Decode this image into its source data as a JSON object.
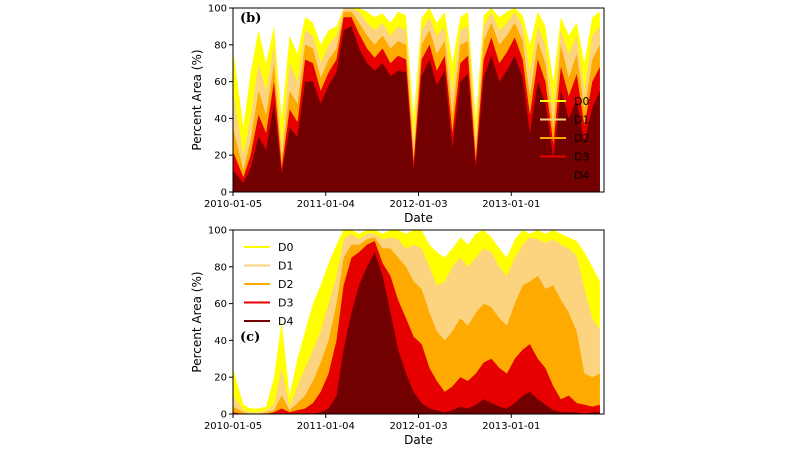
{
  "chart_data": [
    {
      "type": "area",
      "panel_label": "(b)",
      "xlabel": "Date",
      "ylabel": "Percent Area (%)",
      "ylim": [
        0,
        100
      ],
      "yticks": [
        0,
        20,
        40,
        60,
        80,
        100
      ],
      "x_range": [
        "2010-01-05",
        "2013-12-31"
      ],
      "xticks": [
        "2010-01-05",
        "2011-01-04",
        "2012-01-03",
        "2013-01-01"
      ],
      "grid": false,
      "legend_position": "center-right",
      "colors": {
        "D0": "#ffff00",
        "D1": "#fcd37f",
        "D2": "#ffaa00",
        "D3": "#e60000",
        "D4": "#730000"
      },
      "x": [
        "2010-01-05",
        "2010-02-15",
        "2010-03-15",
        "2010-04-15",
        "2010-05-15",
        "2010-06-15",
        "2010-07-15",
        "2010-08-15",
        "2010-09-15",
        "2010-10-15",
        "2010-11-15",
        "2010-12-15",
        "2011-01-15",
        "2011-02-15",
        "2011-03-15",
        "2011-04-15",
        "2011-05-15",
        "2011-06-15",
        "2011-07-15",
        "2011-08-15",
        "2011-09-15",
        "2011-10-15",
        "2011-11-15",
        "2011-12-15",
        "2012-01-15",
        "2012-02-15",
        "2012-03-15",
        "2012-04-15",
        "2012-05-15",
        "2012-06-15",
        "2012-07-15",
        "2012-08-15",
        "2012-09-15",
        "2012-10-15",
        "2012-11-15",
        "2012-12-15",
        "2013-01-15",
        "2013-02-15",
        "2013-03-15",
        "2013-04-15",
        "2013-05-15",
        "2013-06-15",
        "2013-07-15",
        "2013-08-15",
        "2013-09-15",
        "2013-10-15",
        "2013-11-15",
        "2013-12-15"
      ],
      "series": [
        {
          "name": "D0",
          "values": [
            78,
            35,
            65,
            88,
            70,
            90,
            40,
            85,
            75,
            95,
            92,
            80,
            88,
            90,
            100,
            100,
            100,
            98,
            95,
            97,
            92,
            98,
            96,
            40,
            95,
            100,
            92,
            98,
            70,
            95,
            98,
            40,
            96,
            100,
            95,
            98,
            100,
            96,
            80,
            98,
            90,
            60,
            95,
            85,
            92,
            70,
            95,
            98
          ]
        },
        {
          "name": "D1",
          "values": [
            55,
            20,
            40,
            70,
            55,
            80,
            25,
            70,
            60,
            88,
            85,
            70,
            80,
            85,
            100,
            100,
            98,
            92,
            88,
            92,
            85,
            90,
            88,
            28,
            88,
            95,
            85,
            90,
            55,
            88,
            90,
            30,
            90,
            98,
            88,
            92,
            98,
            90,
            65,
            90,
            80,
            45,
            88,
            75,
            85,
            55,
            85,
            90
          ]
        },
        {
          "name": "D2",
          "values": [
            35,
            12,
            28,
            55,
            42,
            70,
            18,
            55,
            48,
            80,
            78,
            62,
            72,
            78,
            98,
            98,
            92,
            85,
            80,
            85,
            78,
            82,
            80,
            20,
            80,
            88,
            75,
            82,
            42,
            80,
            82,
            22,
            82,
            92,
            80,
            85,
            92,
            82,
            52,
            82,
            70,
            35,
            80,
            62,
            75,
            45,
            72,
            80
          ]
        },
        {
          "name": "D3",
          "values": [
            22,
            8,
            20,
            42,
            32,
            60,
            13,
            45,
            38,
            72,
            70,
            55,
            65,
            72,
            95,
            95,
            86,
            78,
            73,
            78,
            70,
            74,
            72,
            16,
            72,
            80,
            66,
            74,
            32,
            70,
            74,
            17,
            72,
            84,
            70,
            76,
            84,
            72,
            42,
            72,
            60,
            26,
            68,
            52,
            64,
            36,
            60,
            68
          ]
        },
        {
          "name": "D4",
          "values": [
            12,
            5,
            13,
            30,
            23,
            48,
            10,
            35,
            30,
            60,
            60,
            48,
            58,
            65,
            88,
            90,
            78,
            70,
            66,
            70,
            63,
            66,
            65,
            12,
            63,
            72,
            58,
            66,
            24,
            60,
            64,
            13,
            62,
            74,
            60,
            66,
            74,
            62,
            32,
            60,
            48,
            18,
            55,
            40,
            50,
            27,
            46,
            55
          ]
        }
      ]
    },
    {
      "type": "area",
      "panel_label": "(c)",
      "xlabel": "Date",
      "ylabel": "Percent Area (%)",
      "ylim": [
        0,
        100
      ],
      "yticks": [
        0,
        20,
        40,
        60,
        80,
        100
      ],
      "x_range": [
        "2010-01-05",
        "2013-12-31"
      ],
      "xticks": [
        "2010-01-05",
        "2011-01-04",
        "2012-01-03",
        "2013-01-01"
      ],
      "grid": false,
      "legend_position": "upper-left",
      "colors": {
        "D0": "#ffff00",
        "D1": "#fcd37f",
        "D2": "#ffaa00",
        "D3": "#e60000",
        "D4": "#730000"
      },
      "x": [
        "2010-01-05",
        "2010-02-15",
        "2010-03-15",
        "2010-04-15",
        "2010-05-15",
        "2010-06-15",
        "2010-07-15",
        "2010-08-15",
        "2010-09-15",
        "2010-10-15",
        "2010-11-15",
        "2010-12-15",
        "2011-01-15",
        "2011-02-15",
        "2011-03-15",
        "2011-04-15",
        "2011-05-15",
        "2011-06-15",
        "2011-07-15",
        "2011-08-15",
        "2011-09-15",
        "2011-10-15",
        "2011-11-15",
        "2011-12-15",
        "2012-01-15",
        "2012-02-15",
        "2012-03-15",
        "2012-04-15",
        "2012-05-15",
        "2012-06-15",
        "2012-07-15",
        "2012-08-15",
        "2012-09-15",
        "2012-10-15",
        "2012-11-15",
        "2012-12-15",
        "2013-01-15",
        "2013-02-15",
        "2013-03-15",
        "2013-04-15",
        "2013-05-15",
        "2013-06-15",
        "2013-07-15",
        "2013-08-15",
        "2013-09-15",
        "2013-10-15",
        "2013-11-15",
        "2013-12-15"
      ],
      "series": [
        {
          "name": "D0",
          "values": [
            25,
            5,
            3,
            3,
            4,
            20,
            50,
            10,
            30,
            45,
            60,
            70,
            82,
            92,
            100,
            100,
            98,
            100,
            100,
            98,
            100,
            100,
            98,
            100,
            100,
            92,
            88,
            85,
            90,
            96,
            92,
            98,
            100,
            96,
            90,
            85,
            95,
            100,
            98,
            100,
            98,
            100,
            98,
            96,
            94,
            88,
            80,
            72
          ]
        },
        {
          "name": "D1",
          "values": [
            10,
            2,
            1,
            1,
            2,
            5,
            25,
            4,
            15,
            25,
            35,
            45,
            60,
            75,
            95,
            98,
            95,
            98,
            98,
            95,
            96,
            95,
            90,
            92,
            90,
            80,
            70,
            72,
            80,
            85,
            80,
            85,
            90,
            88,
            80,
            75,
            85,
            92,
            96,
            95,
            93,
            95,
            92,
            90,
            86,
            68,
            52,
            46
          ]
        },
        {
          "name": "D2",
          "values": [
            4,
            1,
            0,
            0,
            1,
            2,
            10,
            2,
            6,
            10,
            18,
            28,
            40,
            60,
            85,
            92,
            92,
            95,
            96,
            90,
            90,
            85,
            80,
            72,
            68,
            55,
            45,
            40,
            45,
            52,
            48,
            55,
            60,
            58,
            52,
            48,
            60,
            70,
            72,
            75,
            68,
            70,
            62,
            55,
            45,
            22,
            20,
            22
          ]
        },
        {
          "name": "D3",
          "values": [
            1,
            0,
            0,
            0,
            0,
            1,
            3,
            1,
            2,
            3,
            6,
            12,
            22,
            40,
            70,
            85,
            88,
            92,
            94,
            82,
            75,
            62,
            52,
            42,
            38,
            25,
            18,
            12,
            15,
            20,
            18,
            22,
            28,
            30,
            25,
            22,
            30,
            35,
            38,
            30,
            25,
            15,
            8,
            10,
            6,
            5,
            4,
            5
          ]
        },
        {
          "name": "D4",
          "values": [
            0,
            0,
            0,
            0,
            0,
            0,
            0,
            0,
            0,
            0,
            0,
            1,
            3,
            10,
            35,
            55,
            70,
            80,
            88,
            75,
            55,
            35,
            22,
            12,
            6,
            3,
            2,
            1,
            2,
            4,
            3,
            5,
            8,
            6,
            4,
            3,
            6,
            10,
            12,
            8,
            5,
            2,
            1,
            1,
            1,
            0,
            1,
            1
          ]
        }
      ]
    }
  ]
}
